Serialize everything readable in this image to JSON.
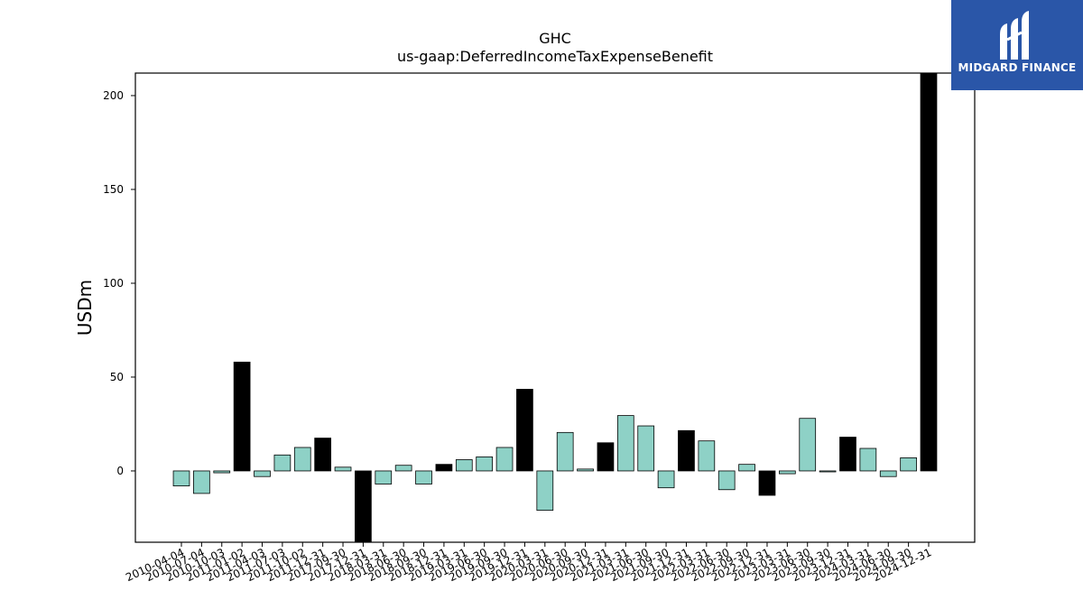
{
  "chart_data": {
    "type": "bar",
    "title": "GHC",
    "subtitle": "us-gaap:DeferredIncomeTaxExpenseBenefit",
    "ylabel": "USDm",
    "xlabel": "",
    "ylim": [
      -38,
      212
    ],
    "yticks": [
      0,
      50,
      100,
      150,
      200
    ],
    "grid": false,
    "colors": {
      "quarterly": "#8ed1c6",
      "annual": "#000000",
      "edge": "#000000"
    },
    "categories": [
      "2010-04-04",
      "2010-07-04",
      "2010-10-03",
      "2011-01-02",
      "2011-04-03",
      "2011-07-03",
      "2011-10-02",
      "2011-12-31",
      "2017-09-30",
      "2017-12-31",
      "2018-03-31",
      "2018-06-30",
      "2018-09-30",
      "2018-12-31",
      "2019-03-31",
      "2019-06-30",
      "2019-09-30",
      "2019-12-31",
      "2020-03-31",
      "2020-06-30",
      "2020-09-30",
      "2020-12-31",
      "2021-03-31",
      "2021-06-30",
      "2021-09-30",
      "2021-12-31",
      "2022-03-31",
      "2022-06-30",
      "2022-09-30",
      "2022-12-31",
      "2023-03-31",
      "2023-06-30",
      "2023-09-30",
      "2023-12-31",
      "2024-03-31",
      "2024-06-30",
      "2024-09-30",
      "2024-12-31"
    ],
    "values": [
      -8,
      -12,
      -1,
      58,
      -3,
      8.5,
      12.5,
      17.5,
      2,
      -38,
      -7,
      3,
      -7,
      3.5,
      6,
      7.5,
      12.5,
      43.5,
      -21,
      20.5,
      1,
      15,
      29.5,
      24,
      -9,
      21.5,
      16,
      -10,
      3.5,
      -13,
      -1.5,
      28,
      -0.5,
      18,
      12,
      -3,
      7,
      212
    ],
    "annual": [
      false,
      false,
      false,
      true,
      false,
      false,
      false,
      true,
      false,
      true,
      false,
      false,
      false,
      true,
      false,
      false,
      false,
      true,
      false,
      false,
      false,
      true,
      false,
      false,
      false,
      true,
      false,
      false,
      false,
      true,
      false,
      false,
      false,
      true,
      false,
      false,
      false,
      true
    ]
  },
  "logo": {
    "text": "MIDGARD FINANCE"
  }
}
